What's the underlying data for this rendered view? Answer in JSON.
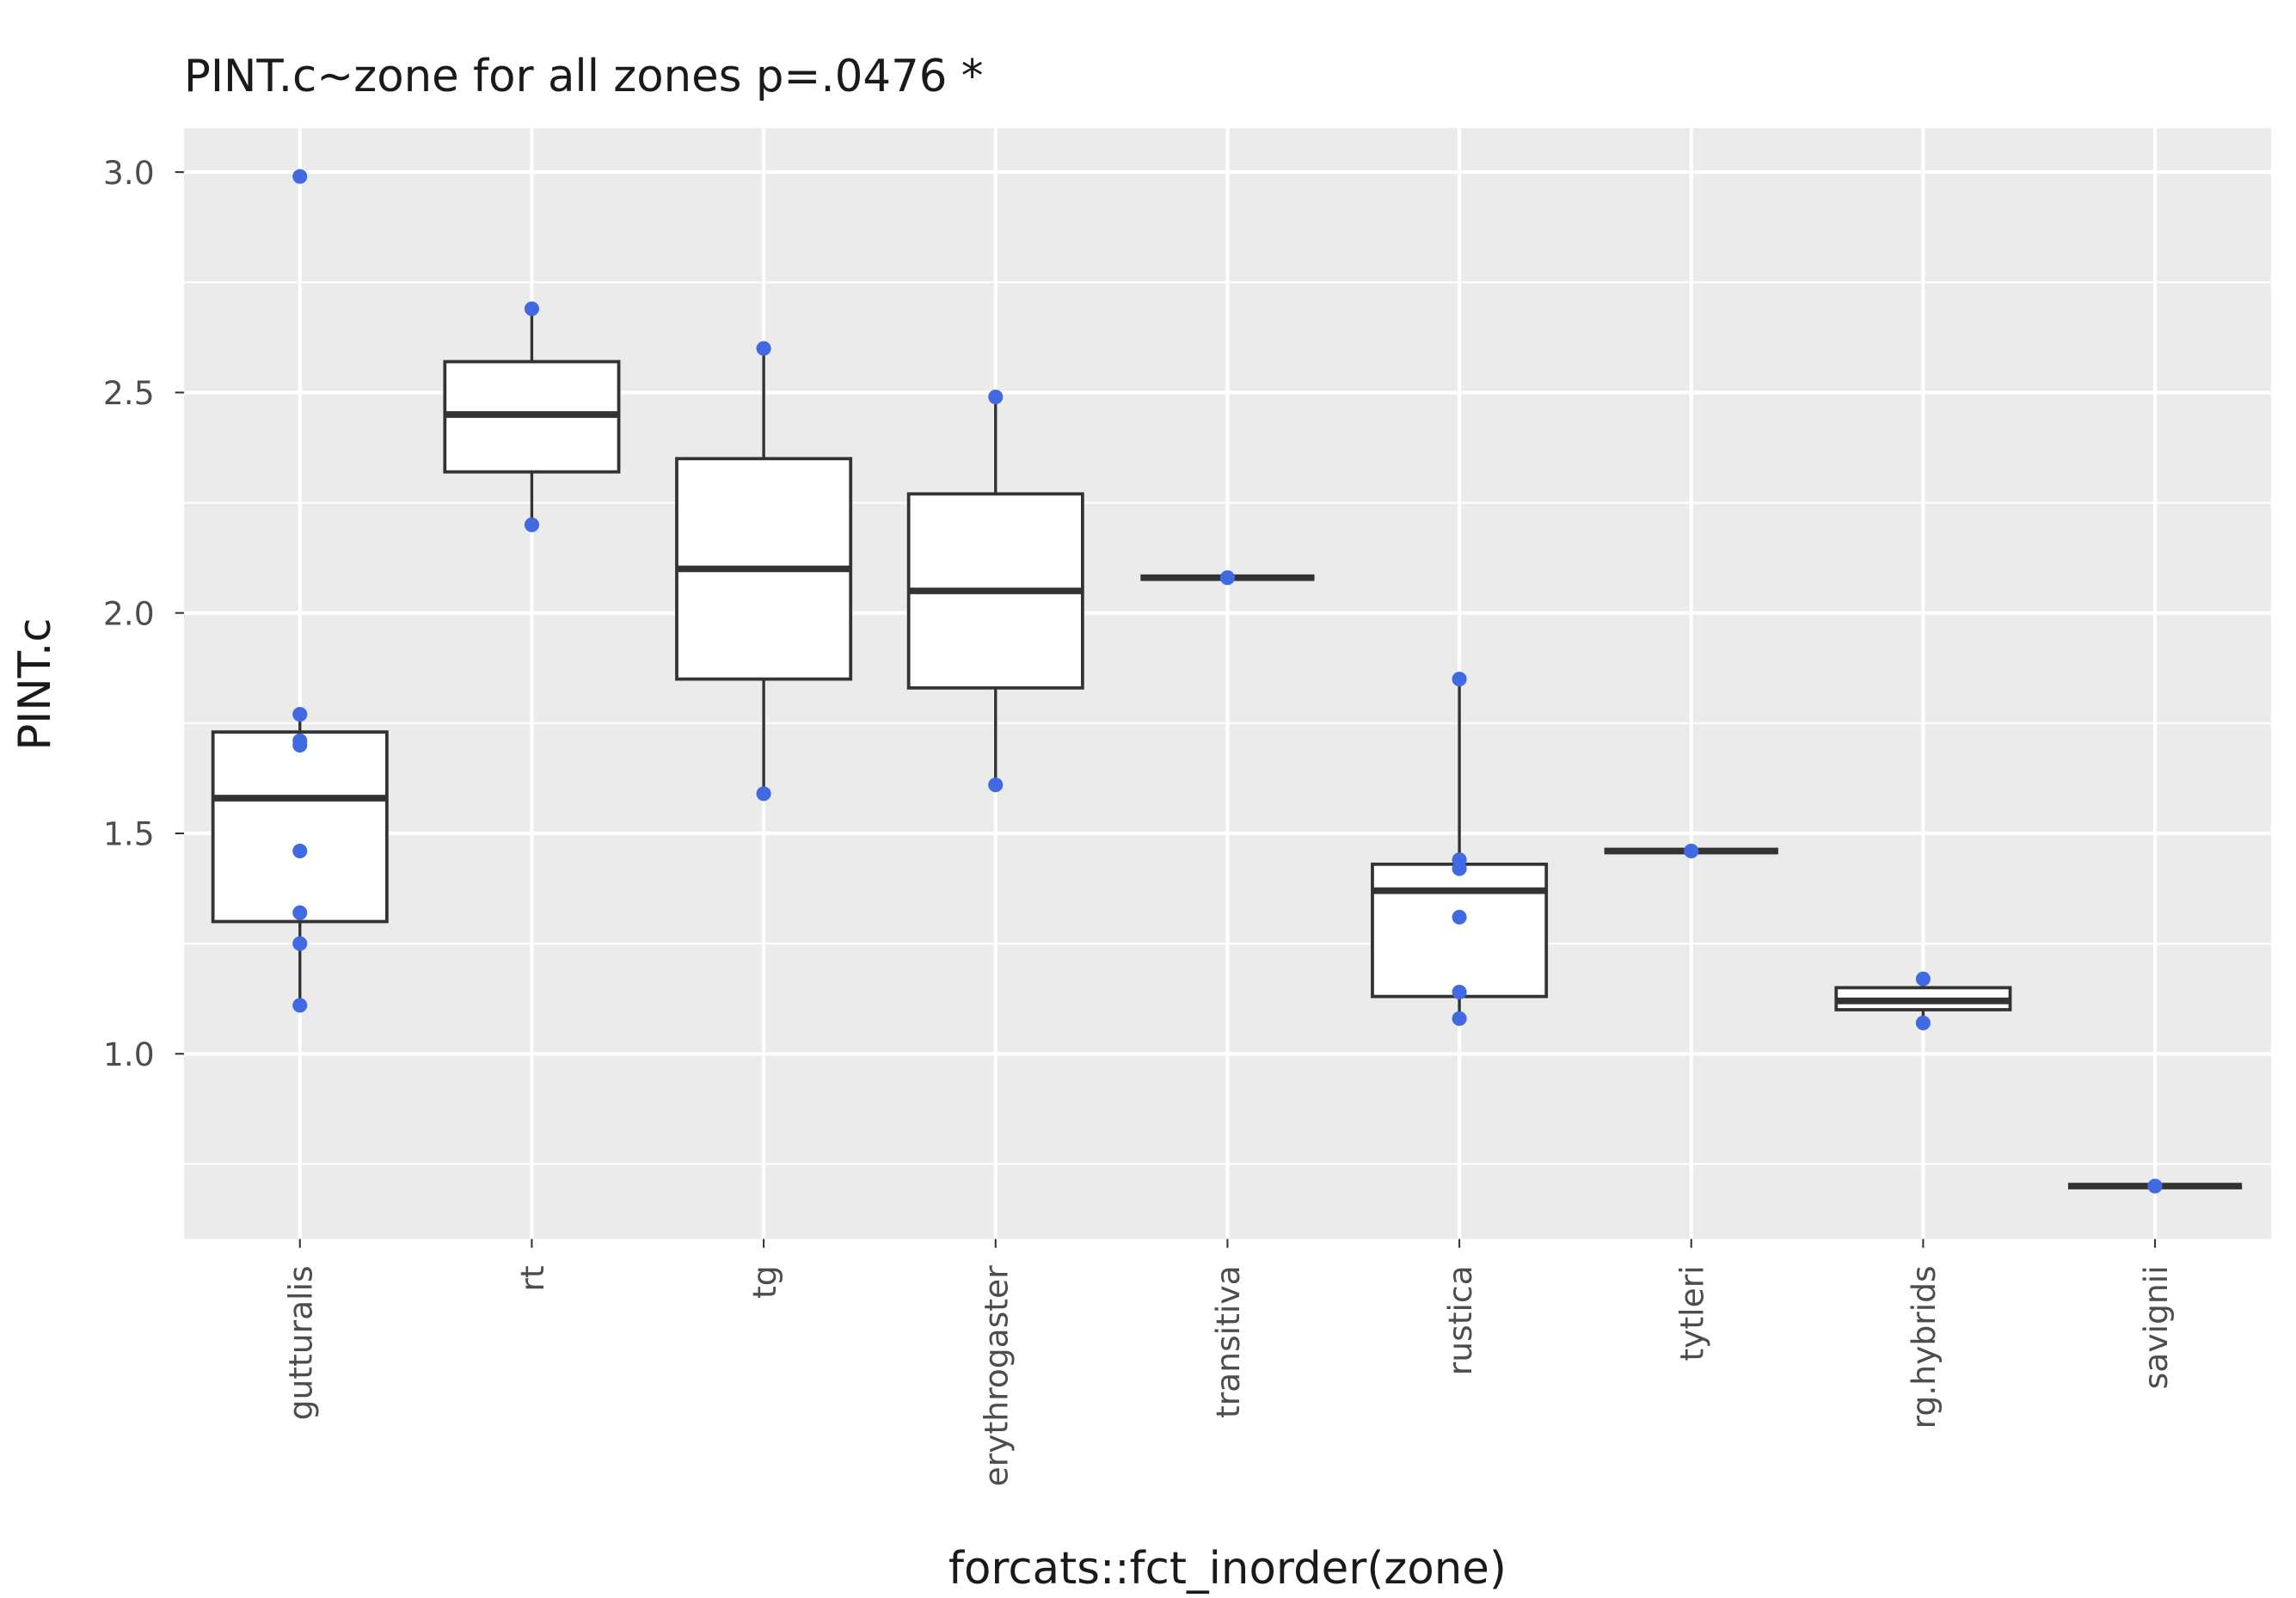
{
  "chart_data": {
    "type": "box",
    "title": "PINT.c~zone for all zones p=.0476 *",
    "x_label": "forcats::fct_inorder(zone)",
    "y_label": "PINT.c",
    "categories": [
      "gutturalis",
      "rt",
      "tg",
      "erythrogaster",
      "transitiva",
      "rustica",
      "tytleri",
      "rg.hybrids",
      "savignii"
    ],
    "boxes": [
      {
        "low": 1.11,
        "q1": 1.3,
        "median": 1.58,
        "q3": 1.73,
        "high": 1.77,
        "points": [
          2.99,
          1.77,
          1.71,
          1.7,
          1.46,
          1.32,
          1.25,
          1.11
        ]
      },
      {
        "low": 2.2,
        "q1": 2.32,
        "median": 2.45,
        "q3": 2.57,
        "high": 2.69,
        "points": [
          2.69,
          2.2
        ]
      },
      {
        "low": 1.59,
        "q1": 1.85,
        "median": 2.1,
        "q3": 2.35,
        "high": 2.6,
        "points": [
          2.6,
          1.59
        ]
      },
      {
        "low": 1.61,
        "q1": 1.83,
        "median": 2.05,
        "q3": 2.27,
        "high": 2.49,
        "points": [
          2.49,
          1.61
        ]
      },
      {
        "low": 2.08,
        "q1": 2.08,
        "median": 2.08,
        "q3": 2.08,
        "high": 2.08,
        "points": [
          2.08
        ]
      },
      {
        "low": 1.08,
        "q1": 1.13,
        "median": 1.37,
        "q3": 1.43,
        "high": 1.85,
        "points": [
          1.85,
          1.44,
          1.42,
          1.31,
          1.14,
          1.08
        ]
      },
      {
        "low": 1.46,
        "q1": 1.46,
        "median": 1.46,
        "q3": 1.46,
        "high": 1.46,
        "points": [
          1.46
        ]
      },
      {
        "low": 1.07,
        "q1": 1.1,
        "median": 1.12,
        "q3": 1.15,
        "high": 1.17,
        "points": [
          1.17,
          1.07
        ]
      },
      {
        "low": 0.7,
        "q1": 0.7,
        "median": 0.7,
        "q3": 0.7,
        "high": 0.7,
        "points": [
          0.7
        ]
      }
    ],
    "ylim": [
      0.58,
      3.1
    ],
    "yticks": [
      {
        "value": 1,
        "label": "1.0"
      },
      1.5,
      {
        "value": 2,
        "label": "2.0"
      },
      2.5,
      {
        "value": 3,
        "label": "3.0"
      }
    ],
    "minor_yticks": [
      0.75,
      1.25,
      1.75,
      2.25,
      2.75
    ],
    "grid": true,
    "panel_color": "#ebebeb",
    "box_color": "#333333",
    "box_fill": "#ffffff",
    "point_color": "#4169e1"
  }
}
